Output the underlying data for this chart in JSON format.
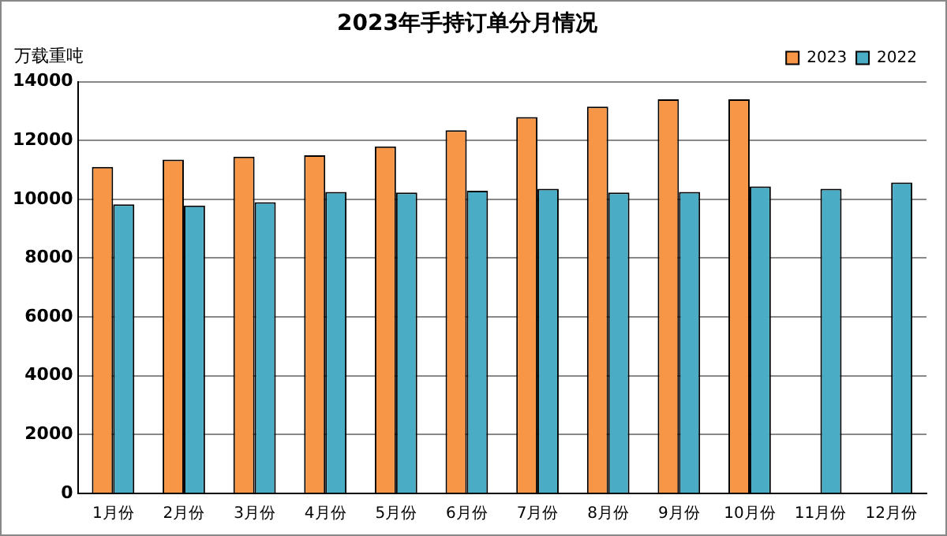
{
  "chart_data": {
    "type": "bar",
    "title": "2023年手持订单分月情况",
    "ylabel": "万载重吨",
    "categories": [
      "1月份",
      "2月份",
      "3月份",
      "4月份",
      "5月份",
      "6月份",
      "7月份",
      "8月份",
      "9月份",
      "10月份",
      "11月份",
      "12月份"
    ],
    "series": [
      {
        "name": "2023",
        "color": "#f79646",
        "values": [
          11100,
          11350,
          11450,
          11500,
          11800,
          12350,
          12800,
          13150,
          13400,
          13400,
          null,
          null
        ]
      },
      {
        "name": "2022",
        "color": "#4bacc6",
        "values": [
          9830,
          9790,
          9900,
          10250,
          10230,
          10290,
          10360,
          10230,
          10250,
          10440,
          10360,
          10570
        ]
      }
    ],
    "ylim": [
      0,
      14000
    ],
    "yticks": [
      0,
      2000,
      4000,
      6000,
      8000,
      10000,
      12000,
      14000
    ],
    "grid": "y",
    "legend": "top right"
  }
}
